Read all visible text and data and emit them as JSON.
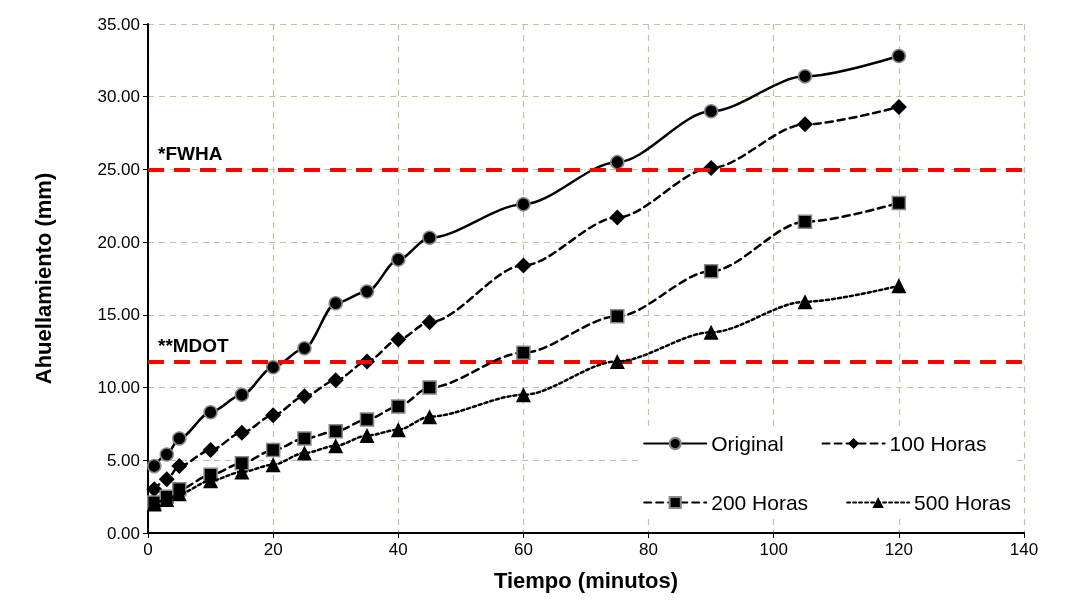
{
  "chart_data": {
    "type": "line",
    "xlabel": "Tiempo (minutos)",
    "ylabel": "Ahuellamiento (mm)",
    "x": [
      1,
      3,
      5,
      10,
      15,
      20,
      25,
      30,
      35,
      40,
      45,
      60,
      75,
      90,
      105,
      120
    ],
    "series": [
      {
        "name": "Original",
        "color": "#000000",
        "marker": "circle",
        "line_style": "solid",
        "values": [
          4.6,
          5.4,
          6.5,
          8.3,
          9.5,
          11.4,
          12.7,
          15.8,
          16.6,
          18.8,
          20.3,
          22.6,
          25.5,
          29.0,
          31.4,
          32.8
        ]
      },
      {
        "name": "100 Horas",
        "color": "#000000",
        "marker": "diamond",
        "line_style": "dashed",
        "values": [
          3.0,
          3.7,
          4.6,
          5.7,
          6.9,
          8.1,
          9.4,
          10.5,
          11.8,
          13.3,
          14.5,
          18.4,
          21.7,
          25.1,
          28.1,
          29.3
        ]
      },
      {
        "name": "200 Horas",
        "color": "#000000",
        "marker": "square",
        "line_style": "dashed",
        "values": [
          2.1,
          2.5,
          3.0,
          4.0,
          4.8,
          5.7,
          6.5,
          7.0,
          7.8,
          8.7,
          10.0,
          12.4,
          14.9,
          18.0,
          21.4,
          22.7
        ]
      },
      {
        "name": "500 Horas",
        "color": "#000000",
        "marker": "triangle",
        "line_style": "dotted",
        "values": [
          2.0,
          2.3,
          2.7,
          3.6,
          4.2,
          4.7,
          5.5,
          6.0,
          6.7,
          7.1,
          8.0,
          9.5,
          11.8,
          13.8,
          15.9,
          17.0
        ]
      }
    ],
    "xlim": [
      0,
      140
    ],
    "xticks": [
      0,
      20,
      40,
      60,
      80,
      100,
      120,
      140
    ],
    "ylim": [
      0,
      35
    ],
    "yticks": [
      {
        "value": 0,
        "label": "0.00"
      },
      {
        "value": 5,
        "label": "5.00"
      },
      {
        "value": 10,
        "label": "10.00"
      },
      {
        "value": 15,
        "label": "15.00"
      },
      {
        "value": 20,
        "label": "20.00"
      },
      {
        "value": 25,
        "label": "25.00"
      },
      {
        "value": 30,
        "label": "30.00"
      },
      {
        "value": 35,
        "label": "35.00"
      }
    ],
    "ref_lines": [
      {
        "axis": "y",
        "value": 25,
        "label": "*FWHA",
        "color": "#ff0000",
        "line_style": "dashed"
      },
      {
        "axis": "y",
        "value": 11.8,
        "label": "**MDOT",
        "color": "#ff0000",
        "line_style": "dashed"
      }
    ],
    "grid": true,
    "legend": "bottom right"
  }
}
